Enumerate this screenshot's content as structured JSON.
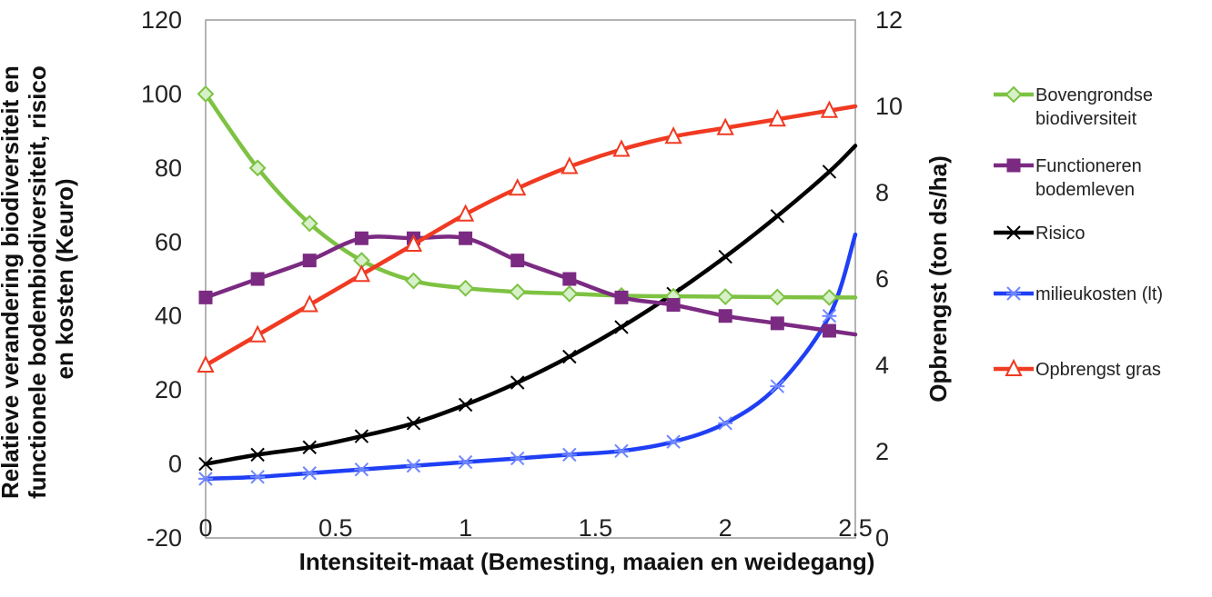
{
  "chart_data": {
    "type": "line",
    "xlabel": "Intensiteit-maat (Bemesting, maaien en weidegang)",
    "ylabel_left_lines": [
      "Relatieve verandering biodiversiteit en",
      "functionele bodembiodiversiteit, risico",
      "en kosten (Keuro)"
    ],
    "ylabel_right": "Opbrengst (ton ds/ha)",
    "xlim": [
      0,
      2.5
    ],
    "xticks": [
      0,
      0.5,
      1,
      1.5,
      2,
      2.5
    ],
    "xtick_labels": [
      "0",
      "0.5",
      "1",
      "1.5",
      "2",
      "2.5"
    ],
    "ylim_left": [
      -20,
      120
    ],
    "yticks_left": [
      -20,
      0,
      20,
      40,
      60,
      80,
      100,
      120
    ],
    "ylim_right": [
      0,
      12
    ],
    "yticks_right": [
      0,
      2,
      4,
      6,
      8,
      10,
      12
    ],
    "grid": false,
    "legend_position": "right",
    "x": [
      0,
      0.2,
      0.4,
      0.6,
      0.8,
      1.0,
      1.2,
      1.4,
      1.6,
      1.8,
      2.0,
      2.2,
      2.4,
      2.5
    ],
    "series": [
      {
        "name_lines": [
          "Bovengrondse",
          "biodiversiteit"
        ],
        "color": "#7dc242",
        "marker": "diamond",
        "axis": "left",
        "values": [
          100,
          80,
          65,
          55,
          49.5,
          47.5,
          46.5,
          46,
          45.5,
          45.3,
          45.2,
          45.1,
          45,
          45
        ]
      },
      {
        "name_lines": [
          "Functioneren",
          "bodemleven"
        ],
        "color": "#7b2a82",
        "marker": "square",
        "axis": "left",
        "values": [
          45,
          50,
          55,
          61,
          61,
          61,
          55,
          50,
          45,
          43,
          40,
          38,
          36,
          35
        ]
      },
      {
        "name_lines": [
          "Risico"
        ],
        "color": "#000000",
        "marker": "x",
        "axis": "left",
        "values": [
          0,
          2.5,
          4.5,
          7.5,
          11,
          16,
          22,
          29,
          37,
          46,
          56,
          67,
          79,
          86
        ]
      },
      {
        "name_lines": [
          "milieukosten (lt)"
        ],
        "color": "#1f3ff5",
        "marker": "asterisk",
        "axis": "left",
        "values": [
          -4,
          -3.5,
          -2.5,
          -1.5,
          -0.5,
          0.5,
          1.5,
          2.5,
          3.5,
          6,
          11,
          21,
          40,
          62
        ]
      },
      {
        "name_lines": [
          "Opbrengst gras"
        ],
        "color": "#f03a22",
        "marker": "triangle",
        "axis": "right",
        "values": [
          4.0,
          4.7,
          5.4,
          6.1,
          6.8,
          7.5,
          8.1,
          8.6,
          9.0,
          9.3,
          9.5,
          9.7,
          9.9,
          10.0
        ]
      }
    ]
  }
}
